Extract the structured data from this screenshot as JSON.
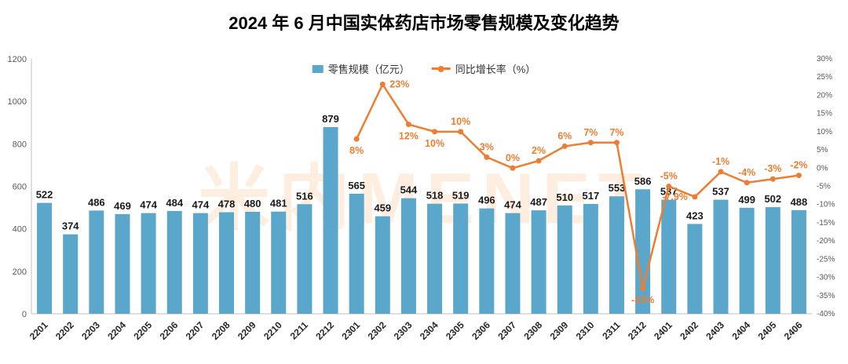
{
  "title": "2024 年 6 月中国实体药店市场零售规模及变化趋势",
  "watermark": "米内MENET",
  "chart_data": {
    "type": "bar",
    "subtype": "combo_bar_line",
    "title": "2024 年 6 月中国实体药店市场零售规模及变化趋势",
    "categories": [
      "2201",
      "2202",
      "2203",
      "2204",
      "2205",
      "2206",
      "2207",
      "2208",
      "2209",
      "2210",
      "2211",
      "2212",
      "2301",
      "2302",
      "2303",
      "2304",
      "2305",
      "2306",
      "2307",
      "2308",
      "2309",
      "2310",
      "2311",
      "2312",
      "2401",
      "2402",
      "2403",
      "2404",
      "2405",
      "2406"
    ],
    "series": [
      {
        "name": "零售规模（亿元）",
        "type": "bar",
        "axis": "left",
        "values": [
          522,
          374,
          486,
          469,
          474,
          484,
          474,
          478,
          480,
          481,
          516,
          879,
          565,
          459,
          544,
          518,
          519,
          496,
          474,
          487,
          510,
          517,
          553,
          586,
          537,
          423,
          537,
          499,
          502,
          488
        ]
      },
      {
        "name": "同比增长率（%）",
        "type": "line",
        "axis": "right",
        "start_index": 12,
        "values": [
          8,
          23,
          12,
          10,
          10,
          3,
          0,
          2,
          6,
          7,
          7,
          -33,
          -5,
          -7.9,
          -1,
          -4,
          -3,
          -2
        ],
        "labels": [
          "8%",
          "23%",
          "12%",
          "10%",
          "10%",
          "3%",
          "0%",
          "2%",
          "6%",
          "7%",
          "7%",
          "-33%",
          "-5%",
          "-7.9%",
          "-1%",
          "-4%",
          "-3%",
          "-2%"
        ]
      }
    ],
    "left_axis": {
      "min": 0,
      "max": 1200,
      "step": 200,
      "ticks": [
        "0",
        "200",
        "400",
        "600",
        "800",
        "1000",
        "1200"
      ]
    },
    "right_axis": {
      "min": -40,
      "max": 30,
      "step": 5,
      "ticks": [
        "30%",
        "25%",
        "20%",
        "15%",
        "10%",
        "5%",
        "0%",
        "-5%",
        "-10%",
        "-15%",
        "-20%",
        "-25%",
        "-30%",
        "-35%",
        "-40%"
      ]
    },
    "legend_position": "top-center",
    "grid": "off",
    "colors": {
      "bar": "#5BA7CC",
      "line": "#ED7D31"
    }
  }
}
